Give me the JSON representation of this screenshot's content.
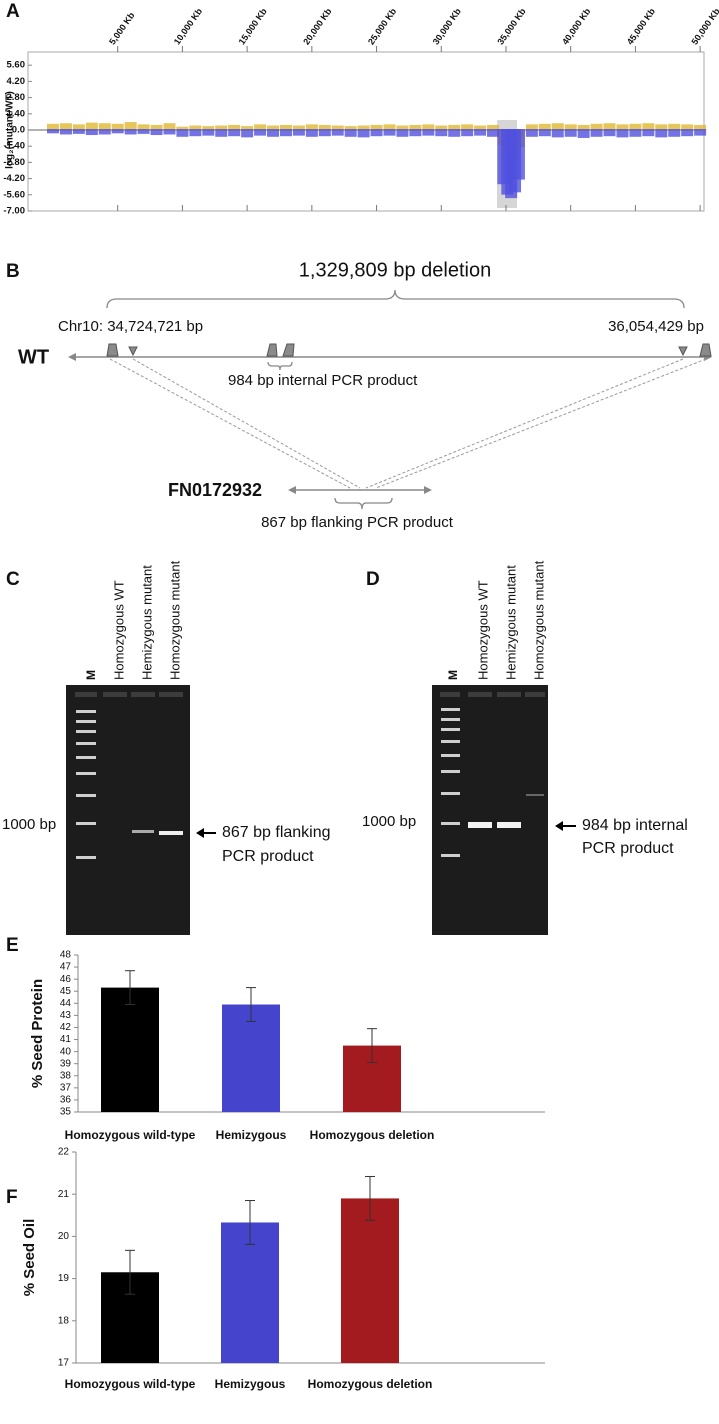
{
  "panel_labels": [
    "A",
    "B",
    "C",
    "D",
    "E",
    "F"
  ],
  "deletion_diagram": {
    "deletion_label": "1,329,809 bp deletion",
    "left_coordinate": "Chr10: 34,724,721 bp",
    "right_coordinate": "36,054,429 bp",
    "wt_label": "WT",
    "internal_product": "984 bp internal PCR product",
    "mutant_label": "FN0172932",
    "flanking_product": "867 bp flanking PCR product"
  },
  "gel_c": {
    "lanes": [
      "M",
      "Homozygous WT",
      "Hemizygous mutant",
      "Homozygous mutant"
    ],
    "marker": "1000 bp",
    "annotation": [
      "867 bp flanking",
      "PCR product"
    ]
  },
  "gel_d": {
    "lanes": [
      "M",
      "Homozygous WT",
      "Hemizygous mutant",
      "Homozygous mutant"
    ],
    "marker": "1000 bp",
    "annotation": [
      "984 bp internal",
      "PCR product"
    ]
  },
  "chart_data": [
    {
      "type": "scatter",
      "ylabel": "log₂(mutant/WT)",
      "x": [
        0,
        1000,
        2000,
        3000,
        4000,
        5000,
        6000,
        7000,
        8000,
        9000,
        10000,
        11000,
        12000,
        13000,
        14000,
        15000,
        16000,
        17000,
        18000,
        19000,
        20000,
        21000,
        22000,
        23000,
        24000,
        25000,
        26000,
        27000,
        28000,
        29000,
        30000,
        31000,
        32000,
        33000,
        34000,
        34800,
        35100,
        35400,
        35700,
        36000,
        37000,
        38000,
        39000,
        40000,
        41000,
        42000,
        43000,
        44000,
        45000,
        46000,
        47000,
        48000,
        49000,
        50000
      ],
      "series": [
        {
          "color": "#e0b830",
          "values": [
            0.45,
            0.5,
            0.4,
            0.55,
            0.5,
            0.45,
            0.6,
            0.4,
            0.35,
            0.5,
            0.2,
            0.3,
            0.25,
            0.3,
            0.35,
            0.25,
            0.4,
            0.3,
            0.35,
            0.3,
            0.4,
            0.35,
            0.3,
            0.25,
            0.3,
            0.35,
            0.4,
            0.3,
            0.35,
            0.4,
            0.3,
            0.35,
            0.4,
            0.3,
            0.35,
            -1.2,
            -2.1,
            -2.6,
            -2.3,
            -1.4,
            0.4,
            0.45,
            0.5,
            0.4,
            0.35,
            0.45,
            0.5,
            0.4,
            0.45,
            0.5,
            0.4,
            0.45,
            0.4,
            0.35
          ]
        },
        {
          "color": "#5050e0",
          "values": [
            -0.2,
            -0.3,
            -0.25,
            -0.35,
            -0.3,
            -0.2,
            -0.3,
            -0.25,
            -0.35,
            -0.3,
            -0.5,
            -0.45,
            -0.4,
            -0.5,
            -0.45,
            -0.55,
            -0.4,
            -0.5,
            -0.45,
            -0.4,
            -0.5,
            -0.45,
            -0.4,
            -0.5,
            -0.55,
            -0.45,
            -0.4,
            -0.5,
            -0.45,
            -0.4,
            -0.45,
            -0.5,
            -0.45,
            -0.4,
            -0.5,
            -4.6,
            -5.5,
            -5.8,
            -5.3,
            -4.2,
            -0.5,
            -0.45,
            -0.55,
            -0.5,
            -0.6,
            -0.5,
            -0.45,
            -0.55,
            -0.5,
            -0.45,
            -0.55,
            -0.5,
            -0.45,
            -0.4
          ]
        }
      ],
      "xlim": [
        0,
        50300
      ],
      "xticks": [
        {
          "value": 5000,
          "label": "5,000 Kb"
        },
        {
          "value": 10000,
          "label": "10,000 Kb"
        },
        {
          "value": 15000,
          "label": "15,000 Kb"
        },
        {
          "value": 20000,
          "label": "20,000 Kb"
        },
        {
          "value": 25000,
          "label": "25,000 Kb"
        },
        {
          "value": 30000,
          "label": "30,000 Kb"
        },
        {
          "value": 35000,
          "label": "35,000 Kb"
        },
        {
          "value": 40000,
          "label": "40,000 Kb"
        },
        {
          "value": 45000,
          "label": "45,000 Kb"
        },
        {
          "value": 50000,
          "label": "50,000 Kb"
        }
      ],
      "ylim": [
        -7,
        7
      ],
      "yticks": [
        {
          "value": 5.6,
          "label": "5.60"
        },
        {
          "value": 4.2,
          "label": "4.20"
        },
        {
          "value": 2.8,
          "label": "2.80"
        },
        {
          "value": 1.4,
          "label": "1.40"
        },
        {
          "value": 0,
          "label": "0.0"
        },
        {
          "value": -1.4,
          "label": "-1.40"
        },
        {
          "value": -2.8,
          "label": "-2.80"
        },
        {
          "value": -4.2,
          "label": "-4.20"
        },
        {
          "value": -5.6,
          "label": "-5.60"
        },
        {
          "value": -7,
          "label": "-7.00"
        }
      ]
    },
    {
      "type": "bar",
      "ylabel": "% Seed Protein",
      "categories": [
        "Homozygous wild-type",
        "Hemizygous",
        "Homozygous deletion"
      ],
      "values": [
        45.3,
        43.9,
        40.5
      ],
      "errors": [
        1.4,
        1.4,
        1.4
      ],
      "colors": [
        "#000000",
        "#4444cc",
        "#a31a1f"
      ],
      "ylim": [
        35,
        48
      ],
      "yticks": [
        35,
        36,
        37,
        38,
        39,
        40,
        41,
        42,
        43,
        44,
        45,
        46,
        47,
        48
      ]
    },
    {
      "type": "bar",
      "ylabel": "% Seed Oil",
      "categories": [
        "Homozygous wild-type",
        "Hemizygous",
        "Homozygous deletion"
      ],
      "values": [
        19.15,
        20.33,
        20.9
      ],
      "errors": [
        0.52,
        0.52,
        0.52
      ],
      "colors": [
        "#000000",
        "#4444cc",
        "#a31a1f"
      ],
      "ylim": [
        17,
        22
      ],
      "yticks": [
        17,
        18,
        19,
        20,
        21,
        22
      ]
    }
  ]
}
